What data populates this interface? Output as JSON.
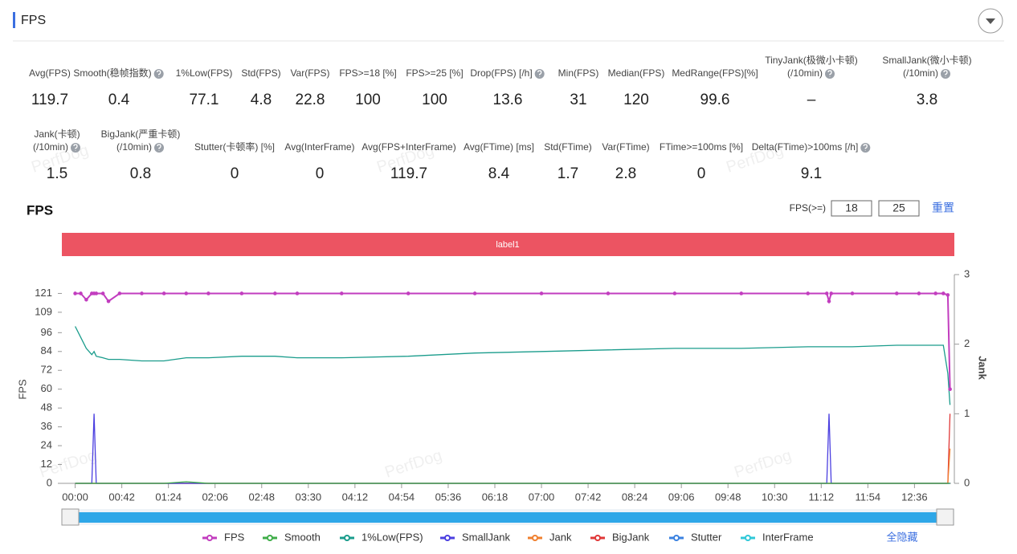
{
  "header": {
    "title": "FPS"
  },
  "watermark": "PerfDog",
  "stats": [
    [
      {
        "label": [
          "Avg(FPS)"
        ],
        "value": 119.7
      },
      {
        "label": [
          "Smooth(稳帧指数)"
        ],
        "value": 0.4,
        "help": true
      },
      {
        "label": [
          "1%Low(FPS)"
        ],
        "value": 77.1
      },
      {
        "label": [
          "Std(FPS)"
        ],
        "value": 4.8
      },
      {
        "label": [
          "Var(FPS)"
        ],
        "value": 22.8
      },
      {
        "label": [
          "FPS>=18 [%]"
        ],
        "value": 100
      },
      {
        "label": [
          "FPS>=25 [%]"
        ],
        "value": 100
      },
      {
        "label": [
          "Drop(FPS) [/h]"
        ],
        "value": 13.6,
        "help": true
      },
      {
        "label": [
          "Min(FPS)"
        ],
        "value": 31
      },
      {
        "label": [
          "Median(FPS)"
        ],
        "value": 120
      },
      {
        "label": [
          "MedRange(FPS)[%]"
        ],
        "value": 99.6
      },
      {
        "label": [
          "TinyJank(极微小卡顿)",
          "(/10min)"
        ],
        "value": "–",
        "help": true
      },
      {
        "label": [
          "SmallJank(微小卡顿)",
          "(/10min)"
        ],
        "value": 3.8,
        "help": true
      }
    ],
    [
      {
        "label": [
          "Jank(卡顿)",
          "(/10min)"
        ],
        "value": 1.5,
        "help": true
      },
      {
        "label": [
          "BigJank(严重卡顿)",
          "(/10min)"
        ],
        "value": 0.8,
        "help": true
      },
      {
        "label": [
          "Stutter(卡顿率) [%]"
        ],
        "value": 0
      },
      {
        "label": [
          "Avg(InterFrame)"
        ],
        "value": 0
      },
      {
        "label": [
          "Avg(FPS+InterFrame)"
        ],
        "value": 119.7
      },
      {
        "label": [
          "Avg(FTime) [ms]"
        ],
        "value": 8.4
      },
      {
        "label": [
          "Std(FTime)"
        ],
        "value": 1.7
      },
      {
        "label": [
          "Var(FTime)"
        ],
        "value": 2.8
      },
      {
        "label": [
          "FTime>=100ms [%]"
        ],
        "value": 0
      },
      {
        "label": [
          "Delta(FTime)>100ms [/h]"
        ],
        "value": 9.1,
        "help": true
      }
    ]
  ],
  "controls": {
    "fps_label": "FPS(>=)",
    "thresholds": [
      18,
      25
    ],
    "reset": "重置"
  },
  "chart_data": {
    "type": "line",
    "title": "FPS",
    "band_label": "label1",
    "y_label": "FPS",
    "y2_label": "Jank",
    "hide_all": "全隐藏",
    "x": [
      0,
      5,
      10,
      15,
      17,
      19,
      25,
      30,
      40,
      60,
      80,
      100,
      120,
      150,
      180,
      200,
      240,
      300,
      360,
      420,
      480,
      540,
      600,
      660,
      677,
      679,
      681,
      700,
      740,
      760,
      775,
      782,
      786,
      788
    ],
    "xlim": [
      -12,
      789
    ],
    "xticks": [
      {
        "value": 0,
        "label": "00:00"
      },
      {
        "value": 42,
        "label": "00:42"
      },
      {
        "value": 84,
        "label": "01:24"
      },
      {
        "value": 126,
        "label": "02:06"
      },
      {
        "value": 168,
        "label": "02:48"
      },
      {
        "value": 210,
        "label": "03:30"
      },
      {
        "value": 252,
        "label": "04:12"
      },
      {
        "value": 294,
        "label": "04:54"
      },
      {
        "value": 336,
        "label": "05:36"
      },
      {
        "value": 378,
        "label": "06:18"
      },
      {
        "value": 420,
        "label": "07:00"
      },
      {
        "value": 462,
        "label": "07:42"
      },
      {
        "value": 504,
        "label": "08:24"
      },
      {
        "value": 546,
        "label": "09:06"
      },
      {
        "value": 588,
        "label": "09:48"
      },
      {
        "value": 630,
        "label": "10:30"
      },
      {
        "value": 672,
        "label": "11:12"
      },
      {
        "value": 714,
        "label": "11:54"
      },
      {
        "value": 756,
        "label": "12:36"
      }
    ],
    "ylim": [
      0,
      133
    ],
    "yticks": [
      0,
      12,
      24,
      36,
      48,
      60,
      72,
      84,
      96,
      109,
      121
    ],
    "y2lim": [
      0,
      3
    ],
    "y2ticks": [
      0,
      1,
      2,
      3
    ],
    "series": [
      {
        "name": "FPS",
        "color": "#c23dbf",
        "markers": true,
        "values": [
          121,
          121,
          117,
          121,
          121,
          121,
          121,
          116,
          121,
          121,
          121,
          121,
          121,
          121,
          121,
          121,
          121,
          121,
          121,
          121,
          121,
          121,
          121,
          121,
          121,
          116,
          121,
          121,
          121,
          121,
          121,
          121,
          120,
          60
        ]
      },
      {
        "name": "Smooth",
        "color": "#3fae49",
        "values": [
          0,
          0,
          0,
          0,
          0,
          0,
          0,
          0,
          0,
          0,
          0,
          1,
          0,
          0,
          0,
          0,
          0,
          0,
          0,
          0,
          0,
          0,
          0,
          0,
          0,
          0,
          0,
          0,
          0,
          0,
          0,
          0,
          0,
          0
        ]
      },
      {
        "name": "1%Low(FPS)",
        "color": "#1a9c8c",
        "values": [
          100,
          93,
          86,
          82,
          84,
          81,
          80,
          79,
          79,
          78,
          78,
          80,
          80,
          81,
          81,
          80,
          80,
          81,
          83,
          84,
          85,
          86,
          86,
          87,
          87,
          87,
          87,
          87,
          88,
          88,
          88,
          88,
          70,
          50
        ]
      },
      {
        "name": "SmallJank",
        "color": "#4b3fe0",
        "axis": "y2",
        "values": [
          0,
          0,
          0,
          0,
          1,
          0,
          0,
          0,
          0,
          0,
          0,
          0,
          0,
          0,
          0,
          0,
          0,
          0,
          0,
          0,
          0,
          0,
          0,
          0,
          0,
          1,
          0,
          0,
          0,
          0,
          0,
          0,
          0,
          0
        ]
      },
      {
        "name": "Jank",
        "color": "#f08030",
        "axis": "y2",
        "values": [
          0,
          0,
          0,
          0,
          0,
          0,
          0,
          0,
          0,
          0,
          0,
          0,
          0,
          0,
          0,
          0,
          0,
          0,
          0,
          0,
          0,
          0,
          0,
          0,
          0,
          0,
          0,
          0,
          0,
          0,
          0,
          0,
          0,
          0.5
        ]
      },
      {
        "name": "BigJank",
        "color": "#e03838",
        "axis": "y2",
        "values": [
          0,
          0,
          0,
          0,
          0,
          0,
          0,
          0,
          0,
          0,
          0,
          0,
          0,
          0,
          0,
          0,
          0,
          0,
          0,
          0,
          0,
          0,
          0,
          0,
          0,
          0,
          0,
          0,
          0,
          0,
          0,
          0,
          0,
          1
        ]
      },
      {
        "name": "Stutter",
        "color": "#3b82e0",
        "axis": "y2",
        "values": [
          0,
          0,
          0,
          0,
          0,
          0,
          0,
          0,
          0,
          0,
          0,
          0,
          0,
          0,
          0,
          0,
          0,
          0,
          0,
          0,
          0,
          0,
          0,
          0,
          0,
          0,
          0,
          0,
          0,
          0,
          0,
          0,
          0,
          0
        ]
      },
      {
        "name": "InterFrame",
        "color": "#30c8d8",
        "values": [
          0,
          0,
          0,
          0,
          0,
          0,
          0,
          0,
          0,
          0,
          0,
          0,
          0,
          0,
          0,
          0,
          0,
          0,
          0,
          0,
          0,
          0,
          0,
          0,
          0,
          0,
          0,
          0,
          0,
          0,
          0,
          0,
          0,
          0
        ]
      }
    ]
  }
}
